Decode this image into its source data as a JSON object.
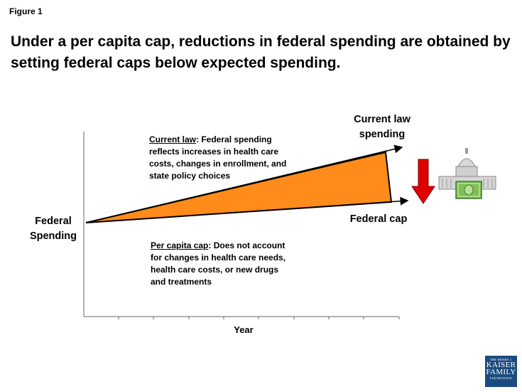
{
  "figure": {
    "label": "Figure 1",
    "title": "Under a per capita cap, reductions in federal spending are obtained by setting federal caps below expected spending."
  },
  "chart": {
    "y_axis_label_line1": "Federal",
    "y_axis_label_line2": "Spending",
    "x_axis_label": "Year",
    "current_law_label_line1": "Current law",
    "current_law_label_line2": "spending",
    "federal_cap_label": "Federal cap",
    "current_law_note_heading": "Current law",
    "current_law_note_text": ": Federal spending reflects increases in health care costs, changes in enrollment, and state policy choices",
    "per_capita_note_heading": "Per capita cap",
    "per_capita_note_text": ": Does not account for changes in health care needs, health care costs, or new drugs and treatments",
    "gap_fill_color": "#ff8c1a",
    "arrow_color": "#e00000"
  },
  "logo": {
    "line1": "THE HENRY J.",
    "line2": "KAISER",
    "line3": "FAMILY",
    "line4": "FOUNDATION"
  }
}
